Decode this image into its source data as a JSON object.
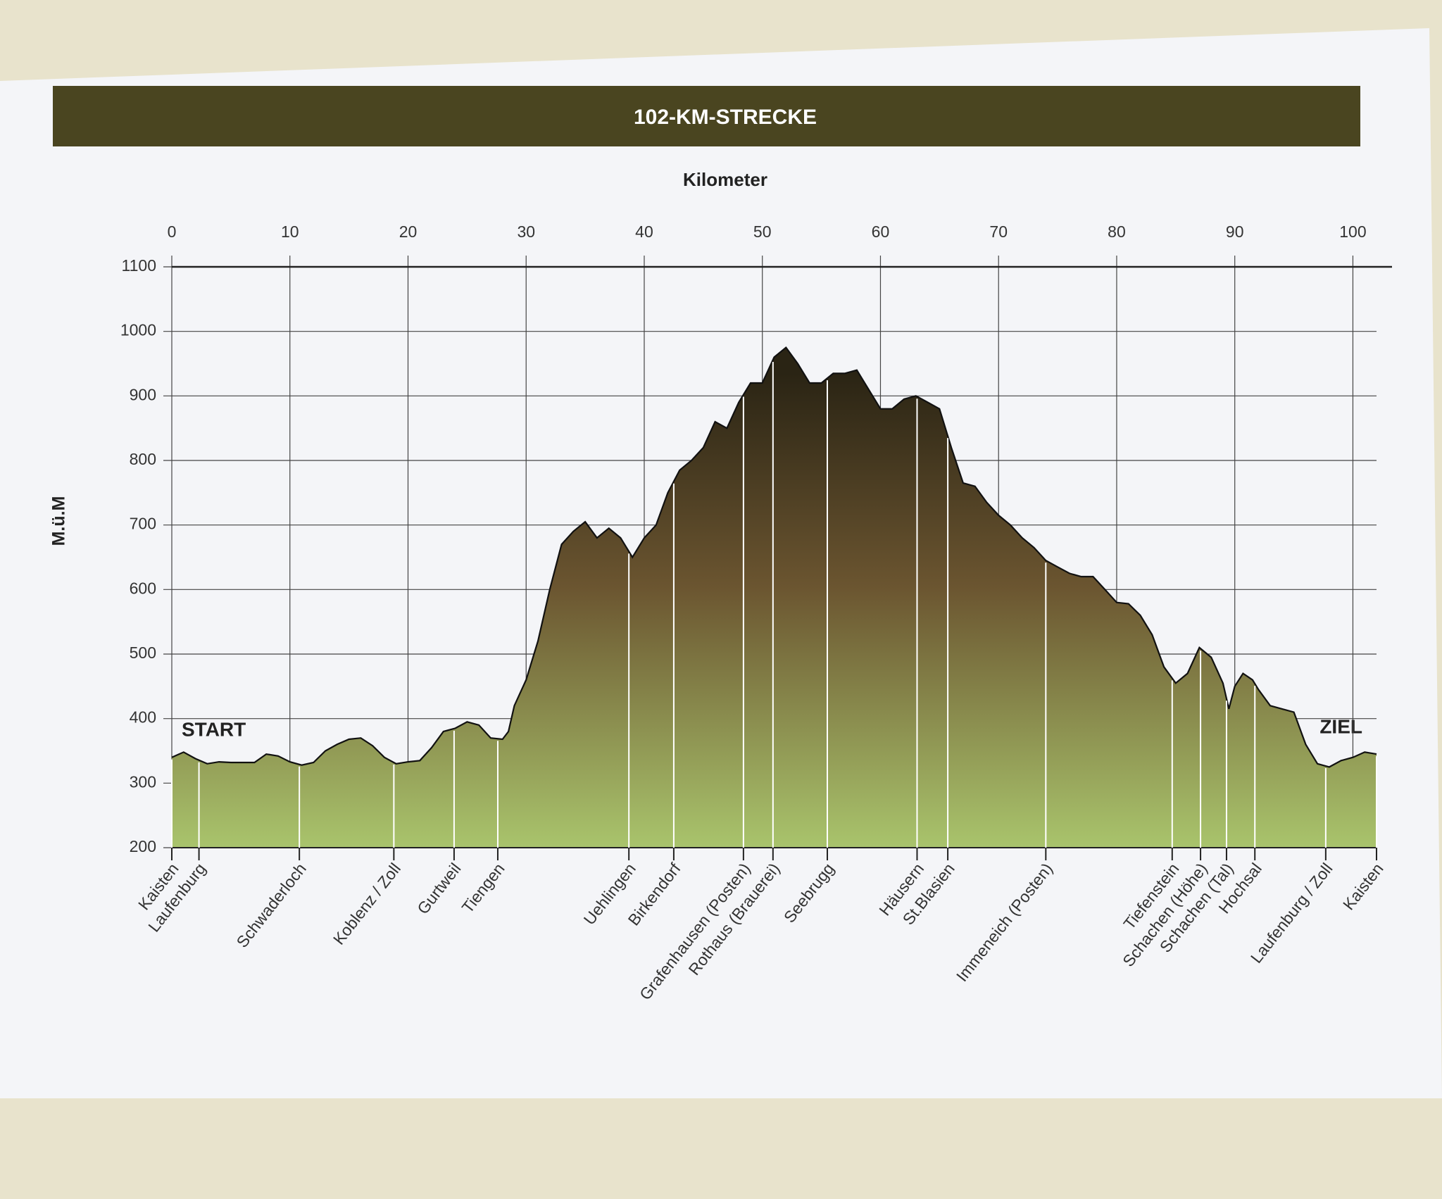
{
  "chart_data": {
    "type": "area",
    "title": "102-KM-STRECKE",
    "x_label": "Kilometer",
    "y_label": "M.ü.M",
    "annotations": [
      "START",
      "ZIEL"
    ],
    "xlim": [
      0,
      102
    ],
    "xticks": [
      0,
      10,
      20,
      30,
      40,
      50,
      60,
      70,
      80,
      90,
      100
    ],
    "ylim": [
      200,
      1100
    ],
    "yticks": [
      200,
      300,
      400,
      500,
      600,
      700,
      800,
      900,
      1000,
      1100
    ],
    "grid": true,
    "fill_gradient": [
      "#2a2414",
      "#6b5530",
      "#a9c46c"
    ],
    "x": [
      0,
      1,
      2,
      3,
      4,
      5,
      7,
      8,
      9,
      10,
      11,
      12,
      13,
      14,
      15,
      16,
      17,
      18,
      19,
      20,
      21,
      22,
      23,
      24,
      25,
      26,
      27,
      28,
      28.5,
      29,
      30,
      31,
      32,
      33,
      34,
      35,
      36,
      37,
      38,
      39,
      40,
      41,
      42,
      43,
      44,
      45,
      46,
      47,
      48,
      49,
      50,
      51,
      52,
      53,
      54,
      55,
      56,
      57,
      58,
      59,
      60,
      61,
      62,
      63,
      64,
      65,
      66,
      67,
      68,
      69,
      70,
      71,
      72,
      73,
      74,
      75,
      76,
      77,
      78,
      79,
      80,
      81,
      82,
      83,
      84,
      85,
      86,
      87,
      88,
      89,
      89.5,
      90,
      90.7,
      91.5,
      92,
      93,
      94,
      95,
      96,
      97,
      98,
      99,
      100,
      101,
      102
    ],
    "values": [
      340,
      348,
      338,
      330,
      333,
      332,
      332,
      345,
      342,
      333,
      328,
      332,
      350,
      360,
      368,
      370,
      358,
      340,
      330,
      333,
      335,
      355,
      380,
      385,
      395,
      390,
      370,
      368,
      380,
      420,
      460,
      520,
      600,
      670,
      690,
      705,
      680,
      695,
      680,
      650,
      680,
      700,
      750,
      785,
      800,
      820,
      860,
      850,
      890,
      920,
      920,
      960,
      975,
      950,
      920,
      920,
      935,
      935,
      940,
      910,
      880,
      880,
      895,
      900,
      890,
      880,
      820,
      765,
      760,
      735,
      715,
      700,
      680,
      665,
      645,
      635,
      625,
      620,
      620,
      600,
      580,
      578,
      560,
      530,
      480,
      455,
      470,
      510,
      495,
      455,
      415,
      450,
      470,
      460,
      445,
      420,
      415,
      410,
      360,
      330,
      325,
      335,
      340,
      348,
      345
    ],
    "markers": {
      "labels": [
        "Kaisten",
        "Laufenburg",
        "Schwaderloch",
        "Koblenz / Zoll",
        "Gurtweil",
        "Tiengen",
        "Uehlingen",
        "Birkendorf",
        "Grafenhausen (Posten)",
        "Rothaus (Brauerei)",
        "Seebrugg",
        "Häusern",
        "St.Blasien",
        "Immeneich (Posten)",
        "Tiefenstein",
        "Schachen (Höhe)",
        "Schachen (Tal)",
        "Hochsal",
        "Laufenburg / Zoll",
        "Kaisten"
      ],
      "x": [
        0,
        2.3,
        10.8,
        18.8,
        23.9,
        27.6,
        38.7,
        42.5,
        48.4,
        50.9,
        55.5,
        63.1,
        65.7,
        74.0,
        84.7,
        87.1,
        89.3,
        91.7,
        97.7,
        102
      ]
    }
  }
}
